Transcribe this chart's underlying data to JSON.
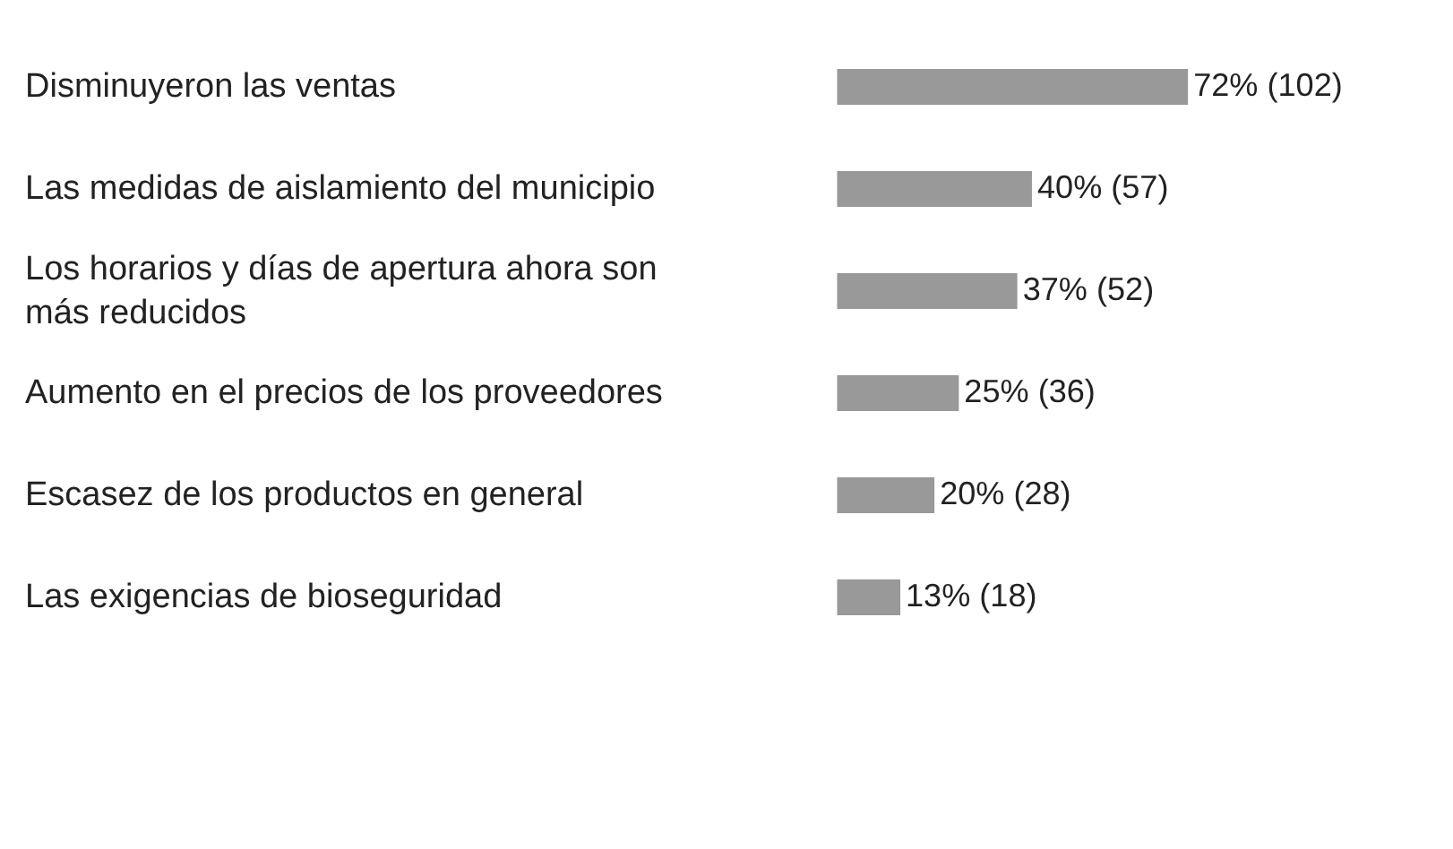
{
  "chart_data": {
    "type": "bar",
    "orientation": "horizontal",
    "categories": [
      "Disminuyeron las ventas",
      "Las medidas de aislamiento del municipio",
      "Los horarios y días de apertura ahora son\nmás reducidos",
      "Aumento en el precios de los proveedores",
      "Escasez de los productos en general",
      "Las exigencias de bioseguridad"
    ],
    "values": [
      72,
      40,
      37,
      25,
      20,
      13
    ],
    "value_labels": [
      "72% (102)",
      "40% (57)",
      "37% (52)",
      "25% (36)",
      "20% (28)",
      "13% (18)"
    ],
    "color": "#999999",
    "legend": false
  }
}
